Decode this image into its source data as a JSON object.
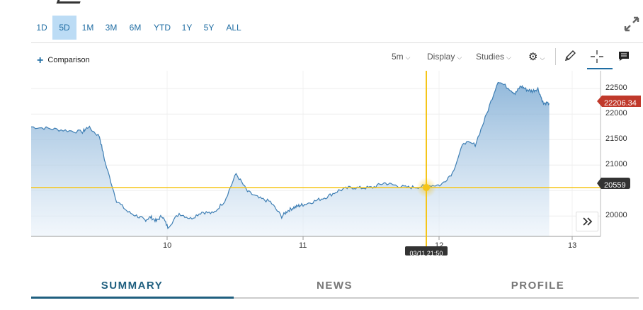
{
  "range_tabs": [
    "1D",
    "5D",
    "1M",
    "3M",
    "6M",
    "YTD",
    "1Y",
    "5Y",
    "ALL"
  ],
  "active_range": "5D",
  "toolbar": {
    "comparison_label": "Comparison",
    "interval_label": "5m",
    "display_label": "Display",
    "studies_label": "Studies"
  },
  "icons": {
    "expand": "expand-arrows-icon",
    "gear": "gear-icon",
    "pencil": "pencil-icon",
    "crosshair": "crosshair-icon",
    "comment": "comment-icon",
    "scroll": "double-chevron-right-icon"
  },
  "chart_data": {
    "type": "area",
    "x_ticks": [
      "10",
      "11",
      "12",
      "13"
    ],
    "y_ticks": [
      "22500",
      "22000",
      "21500",
      "21000",
      "20000"
    ],
    "last_price_label": "22206.34",
    "crosshair_value_label": "20559",
    "crosshair_time_label": "03/11 21:50",
    "ylim": [
      19600,
      22850
    ],
    "x": [
      0,
      0.03,
      0.06,
      0.09,
      0.1,
      0.12,
      0.13,
      0.15,
      0.17,
      0.19,
      0.2,
      0.21,
      0.22,
      0.23,
      0.24,
      0.26,
      0.28,
      0.3,
      0.32,
      0.34,
      0.36,
      0.38,
      0.4,
      0.42,
      0.44,
      0.45,
      0.46,
      0.47,
      0.48,
      0.5,
      0.52,
      0.54,
      0.56,
      0.58,
      0.6,
      0.62,
      0.64,
      0.66,
      0.68,
      0.7,
      0.72,
      0.74,
      0.76,
      0.78,
      0.8,
      0.82,
      0.84,
      0.85,
      0.86,
      0.87,
      0.88,
      0.89,
      0.9,
      0.91,
      0.92,
      0.93,
      0.94,
      0.95,
      0.96,
      0.97,
      0.98,
      1
    ],
    "values": [
      21750,
      21720,
      21680,
      21650,
      21750,
      21560,
      21050,
      20300,
      20080,
      19980,
      19920,
      19980,
      19900,
      20010,
      19780,
      20050,
      19950,
      20080,
      20050,
      20300,
      20830,
      20480,
      20350,
      20280,
      19990,
      20100,
      20160,
      20200,
      20230,
      20300,
      20380,
      20500,
      20560,
      20550,
      20560,
      20650,
      20600,
      20560,
      20570,
      20600,
      20610,
      20850,
      21450,
      21400,
      22000,
      22650,
      22500,
      22400,
      22550,
      22480,
      22450,
      22500,
      22200,
      22206.34,
      22206.34,
      22206.34,
      22206.34,
      22206.34,
      22206.34,
      22206.34,
      22206.34,
      22206.34
    ]
  },
  "bottom_tabs": [
    "SUMMARY",
    "NEWS",
    "PROFILE"
  ],
  "active_bottom_tab": "SUMMARY",
  "colors": {
    "accent": "#1f6da3",
    "crosshair": "#f5c518",
    "last_price_tag": "#c0392b",
    "crosshair_tag": "#333333",
    "series_line": "#3f7fb4",
    "active_tab_underline": "#1f5f7f"
  }
}
